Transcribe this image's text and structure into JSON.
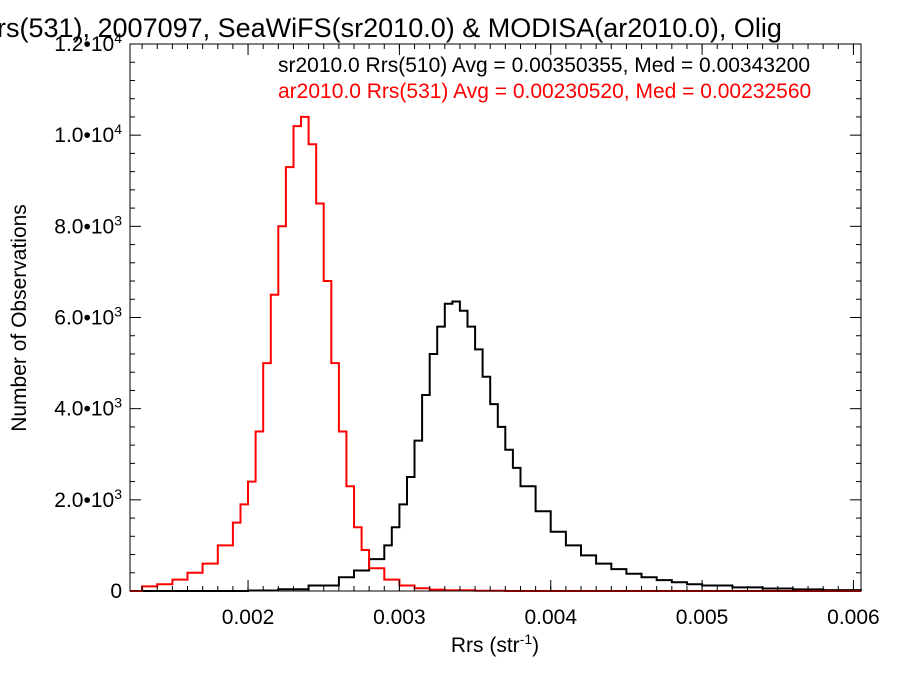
{
  "chart_data": {
    "type": "line",
    "title": "rs(531), 2007097, SeaWiFS(sr2010.0) & MODISA(ar2010.0), Olig",
    "xlabel": "Rrs (str",
    "xlabel_sup": "-1",
    "xlabel_tail": ")",
    "ylabel": "Number of Observations",
    "xlim": [
      0.00122,
      0.00605
    ],
    "ylim": [
      0,
      12000
    ],
    "grid": false,
    "legend_placement": "top-right",
    "x_ticks": [
      {
        "value": 0.002,
        "label": "0.002"
      },
      {
        "value": 0.003,
        "label": "0.003"
      },
      {
        "value": 0.004,
        "label": "0.004"
      },
      {
        "value": 0.005,
        "label": "0.005"
      },
      {
        "value": 0.006,
        "label": "0.006"
      }
    ],
    "y_ticks": [
      {
        "value": 0,
        "mantissa": "0",
        "exp": ""
      },
      {
        "value": 2000,
        "mantissa": "2.0•10",
        "exp": "3"
      },
      {
        "value": 4000,
        "mantissa": "4.0•10",
        "exp": "3"
      },
      {
        "value": 6000,
        "mantissa": "6.0•10",
        "exp": "3"
      },
      {
        "value": 8000,
        "mantissa": "8.0•10",
        "exp": "3"
      },
      {
        "value": 10000,
        "mantissa": "1.0•10",
        "exp": "4"
      },
      {
        "value": 12000,
        "mantissa": "1.2•10",
        "exp": "4"
      }
    ],
    "series": [
      {
        "name": "sr2010.0 Rrs(510) Avg = 0.00350355, Med = 0.00343200",
        "color": "#000000",
        "x": [
          0.00122,
          0.0015,
          0.0018,
          0.002,
          0.0022,
          0.0024,
          0.0026,
          0.0027,
          0.0028,
          0.0029,
          0.00295,
          0.003,
          0.00305,
          0.0031,
          0.00315,
          0.0032,
          0.00325,
          0.0033,
          0.00335,
          0.0034,
          0.00345,
          0.0035,
          0.00355,
          0.0036,
          0.00365,
          0.0037,
          0.00375,
          0.0038,
          0.0039,
          0.004,
          0.0041,
          0.0042,
          0.0043,
          0.0044,
          0.0045,
          0.0046,
          0.0047,
          0.0048,
          0.0049,
          0.005,
          0.0052,
          0.0054,
          0.0056,
          0.0058,
          0.00605
        ],
        "y": [
          0,
          0,
          0,
          10,
          40,
          120,
          300,
          450,
          700,
          1000,
          1400,
          1900,
          2500,
          3300,
          4300,
          5200,
          5800,
          6300,
          6350,
          6150,
          5800,
          5300,
          4700,
          4100,
          3600,
          3100,
          2700,
          2300,
          1750,
          1300,
          1000,
          780,
          600,
          480,
          380,
          300,
          240,
          190,
          150,
          120,
          80,
          55,
          35,
          20,
          10
        ]
      },
      {
        "name": "ar2010.0 Rrs(531) Avg = 0.00230520, Med = 0.00232560",
        "color": "#ff0000",
        "x": [
          0.00122,
          0.0013,
          0.0014,
          0.0015,
          0.0016,
          0.0017,
          0.0018,
          0.0019,
          0.00195,
          0.002,
          0.00205,
          0.0021,
          0.00215,
          0.0022,
          0.00225,
          0.0023,
          0.00235,
          0.0024,
          0.00245,
          0.0025,
          0.00255,
          0.0026,
          0.00265,
          0.0027,
          0.00275,
          0.0028,
          0.0029,
          0.003,
          0.0031,
          0.0032,
          0.0033,
          0.0035,
          0.0037,
          0.004,
          0.00605
        ],
        "y": [
          0,
          100,
          150,
          250,
          400,
          600,
          1000,
          1500,
          1900,
          2400,
          3500,
          5000,
          6500,
          8000,
          9300,
          10200,
          10400,
          9800,
          8500,
          6800,
          5000,
          3500,
          2300,
          1400,
          900,
          500,
          250,
          120,
          60,
          30,
          15,
          5,
          0,
          0,
          0
        ]
      }
    ]
  }
}
